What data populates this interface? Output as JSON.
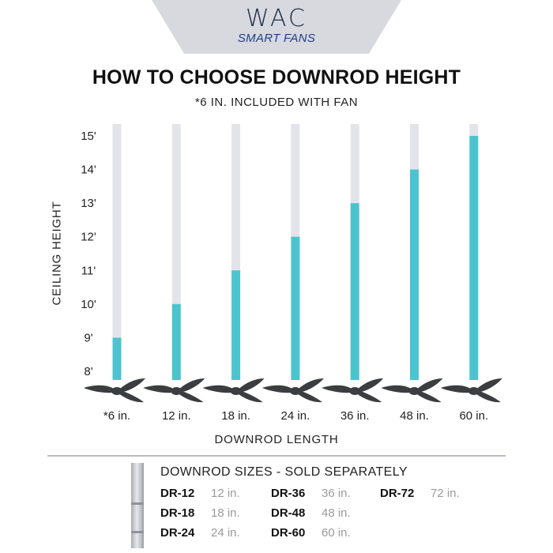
{
  "brand": {
    "name": "WAC",
    "tagline": "SMART FANS"
  },
  "colors": {
    "bar_fill": "#4cc4cf",
    "bar_track": "#e3e4ea",
    "fan_blade": "#3b3d40",
    "brand_text": "#1f2d4a"
  },
  "chart_data": {
    "type": "bar",
    "title": "HOW TO CHOOSE DOWNROD HEIGHT",
    "subtitle": "*6 IN. INCLUDED WITH FAN",
    "xlabel": "DOWNROD LENGTH",
    "ylabel": "CEILING HEIGHT",
    "categories": [
      "*6 in.",
      "12 in.",
      "18 in.",
      "24 in.",
      "36 in.",
      "48 in.",
      "60 in."
    ],
    "values": [
      9,
      10,
      11,
      12,
      13,
      14,
      15
    ],
    "yticks": [
      "8'",
      "9'",
      "10'",
      "11'",
      "12'",
      "13'",
      "14'",
      "15'"
    ],
    "ylim": [
      8,
      15
    ],
    "grid": false,
    "marker_icon": "ceiling-fan-icon"
  },
  "downrod_sizes": {
    "heading": "DOWNROD SIZES - SOLD SEPARATELY",
    "icon": "downrod-icon",
    "items": [
      {
        "code": "DR-12",
        "length": "12 in."
      },
      {
        "code": "DR-18",
        "length": "18 in."
      },
      {
        "code": "DR-24",
        "length": "24 in."
      },
      {
        "code": "DR-36",
        "length": "36 in."
      },
      {
        "code": "DR-48",
        "length": "48 in."
      },
      {
        "code": "DR-60",
        "length": "60 in."
      },
      {
        "code": "DR-72",
        "length": "72 in."
      }
    ]
  }
}
